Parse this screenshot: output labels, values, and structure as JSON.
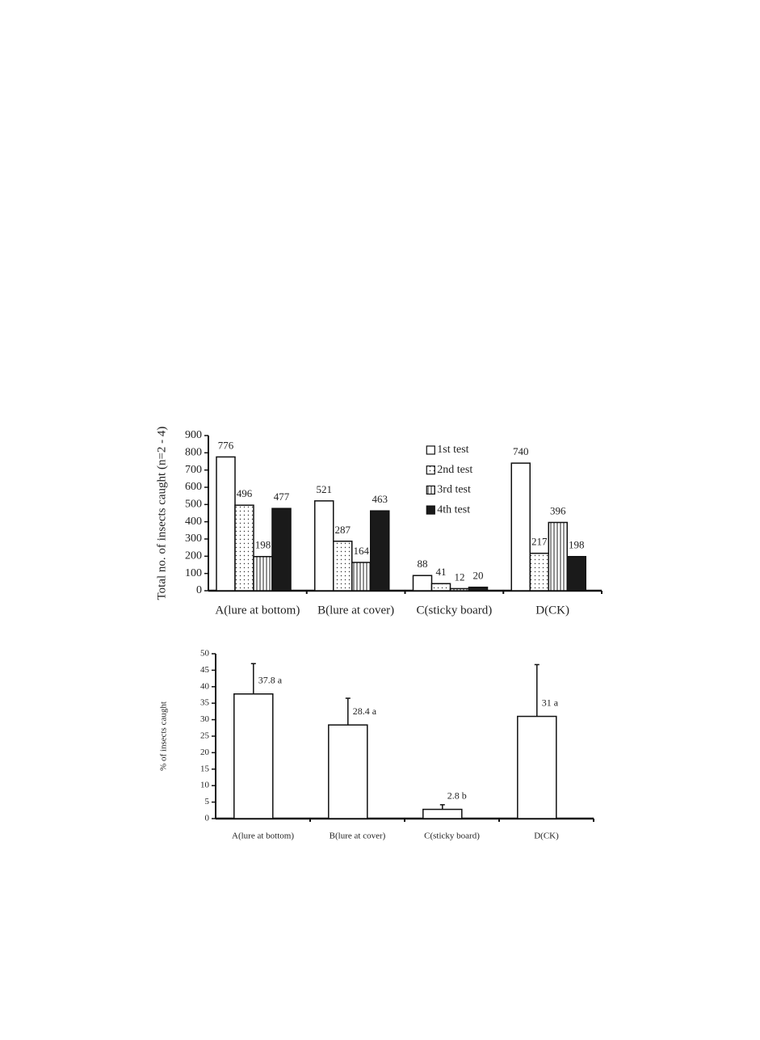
{
  "chart_data": [
    {
      "type": "bar",
      "y_label": "Total no. of insects caught (n=2 - 4)",
      "categories": [
        "A(lure at bottom)",
        "B(lure at cover)",
        "C(sticky board)",
        "D(CK)"
      ],
      "series": [
        {
          "name": "1st test",
          "color": "#ffffff",
          "pattern": "none",
          "values": [
            776,
            521,
            88,
            740
          ]
        },
        {
          "name": "2nd test",
          "color": "#ffffff",
          "pattern": "dots",
          "values": [
            496,
            287,
            41,
            217
          ]
        },
        {
          "name": "3rd test",
          "color": "#ffffff",
          "pattern": "vlines",
          "values": [
            198,
            164,
            12,
            396
          ]
        },
        {
          "name": "4th test",
          "color": "#1a1a1a",
          "pattern": "none",
          "values": [
            477,
            463,
            20,
            198
          ]
        }
      ],
      "ylim": [
        0,
        900
      ],
      "yticks": [
        0,
        100,
        200,
        300,
        400,
        500,
        600,
        700,
        800,
        900
      ],
      "legend": "upper right",
      "grid": false
    },
    {
      "type": "bar",
      "y_label": "% of insects caught",
      "categories": [
        "A(lure at bottom)",
        "B(lure at cover)",
        "C(sticky board)",
        "D(CK)"
      ],
      "values": [
        37.8,
        28.4,
        2.8,
        31
      ],
      "value_labels": [
        "37.8 a",
        "28.4 a",
        "2.8 b",
        "31 a"
      ],
      "errors": [
        9.2,
        8.1,
        1.4,
        15.7
      ],
      "color": "#ffffff",
      "ylim": [
        0,
        50
      ],
      "yticks": [
        0,
        5,
        10,
        15,
        20,
        25,
        30,
        35,
        40,
        45,
        50
      ],
      "grid": false
    }
  ]
}
